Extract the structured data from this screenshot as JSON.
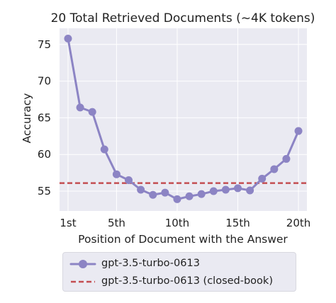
{
  "chart_data": {
    "type": "line",
    "title": "20 Total Retrieved Documents (~4K tokens)",
    "xlabel": "Position of Document with the Answer",
    "ylabel": "Accuracy",
    "xlim": [
      0.3,
      20.7
    ],
    "ylim": [
      52.3,
      77.2
    ],
    "x_ticks": [
      1,
      5,
      10,
      15,
      20
    ],
    "x_tick_labels": [
      "1st",
      "5th",
      "10th",
      "15th",
      "20th"
    ],
    "y_ticks": [
      55,
      60,
      65,
      70,
      75
    ],
    "y_tick_labels": [
      "55",
      "60",
      "65",
      "70",
      "75"
    ],
    "grid": true,
    "legend_position": "below",
    "series": [
      {
        "name": "gpt-3.5-turbo-0613",
        "kind": "line-markers",
        "color": "#8c84c4",
        "x": [
          1,
          2,
          3,
          4,
          5,
          6,
          7,
          8,
          9,
          10,
          11,
          12,
          13,
          14,
          15,
          16,
          17,
          18,
          19,
          20
        ],
        "y": [
          75.8,
          66.4,
          65.8,
          60.7,
          57.3,
          56.5,
          55.2,
          54.5,
          54.8,
          53.9,
          54.3,
          54.6,
          55.0,
          55.2,
          55.4,
          55.1,
          56.7,
          58.0,
          59.4,
          63.2
        ]
      },
      {
        "name": "gpt-3.5-turbo-0613 (closed-book)",
        "kind": "hline-dashed",
        "color": "#c44e52",
        "y": 56.1
      }
    ]
  }
}
